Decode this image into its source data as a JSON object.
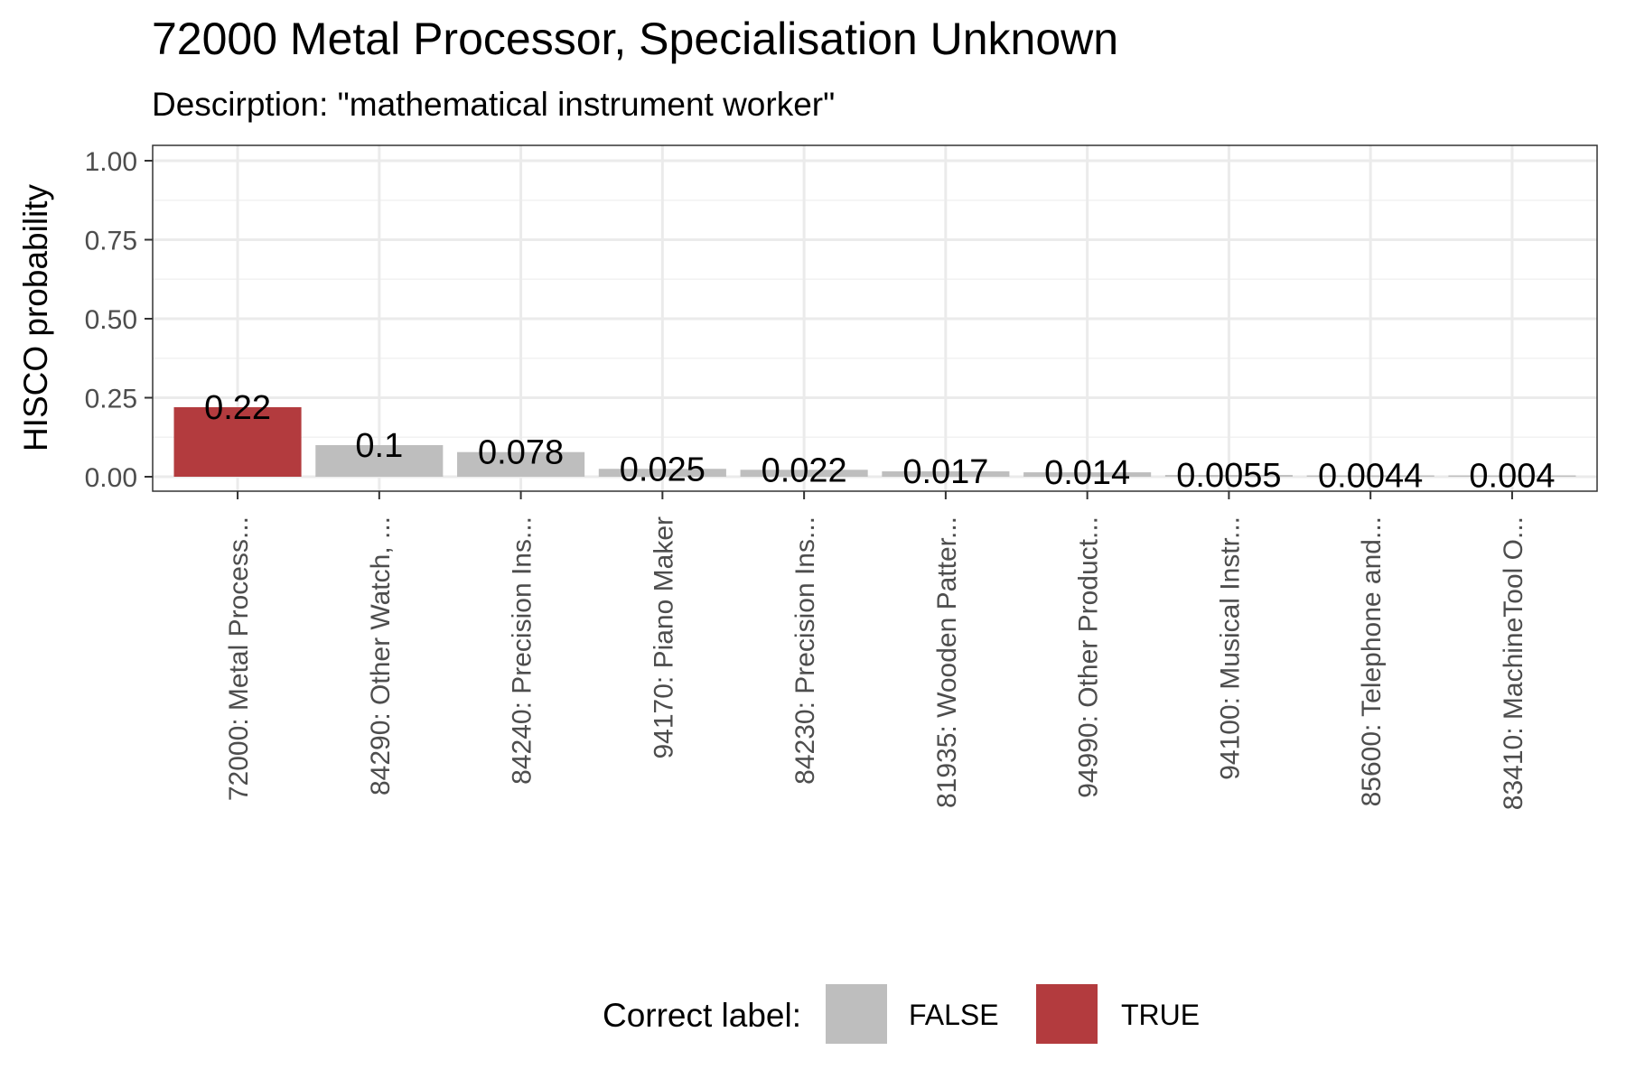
{
  "chart_data": {
    "type": "bar",
    "title": "72000 Metal Processor, Specialisation Unknown",
    "subtitle": "Descirption: \"mathematical instrument worker\"",
    "xlabel": "",
    "ylabel": "HISCO probability",
    "ylim": [
      0,
      1.0
    ],
    "yticks": [
      0.0,
      0.25,
      0.5,
      0.75,
      1.0
    ],
    "ytick_labels": [
      "0.00",
      "0.25",
      "0.50",
      "0.75",
      "1.00"
    ],
    "grid": true,
    "categories": [
      "72000: Metal Process...",
      "84290: Other Watch, ...",
      "84240: Precision Ins...",
      "94170: Piano Maker",
      "84230: Precision Ins...",
      "81935: Wooden Patter...",
      "94990: Other Product...",
      "94100: Musical Instr...",
      "85600: Telephone and...",
      "83410: MachineTool O..."
    ],
    "values": [
      0.22,
      0.1,
      0.078,
      0.025,
      0.022,
      0.017,
      0.014,
      0.0055,
      0.0044,
      0.004
    ],
    "data_labels": [
      "0.22",
      "0.1",
      "0.078",
      "0.025",
      "0.022",
      "0.017",
      "0.014",
      "0.0055",
      "0.0044",
      "0.004"
    ],
    "correct": [
      true,
      false,
      false,
      false,
      false,
      false,
      false,
      false,
      false,
      false
    ],
    "legend": {
      "title": "Correct label:",
      "position": "bottom",
      "entries": [
        {
          "label": "FALSE",
          "color": "#bebebe"
        },
        {
          "label": "TRUE",
          "color": "#b33b3e"
        }
      ]
    },
    "colors": {
      "false": "#bebebe",
      "true": "#b33b3e"
    }
  }
}
